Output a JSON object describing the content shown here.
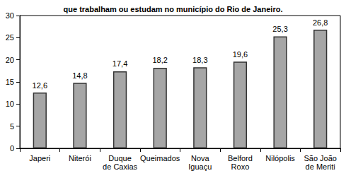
{
  "chart_data": {
    "type": "bar",
    "title": "que trabalham ou estudam no município do Rio de Janeiro.",
    "categories": [
      "Japeri",
      "Niterói",
      "Duque\nde Caxias",
      "Queimados",
      "Nova\nIguaçu",
      "Belford\nRoxo",
      "Nilópolis",
      "São João\nde Meriti"
    ],
    "values": [
      12.6,
      14.8,
      17.4,
      18.2,
      18.3,
      19.6,
      25.3,
      26.8
    ],
    "value_labels": [
      "12,6",
      "14,8",
      "17,4",
      "18,2",
      "18,3",
      "19,6",
      "25,3",
      "26,8"
    ],
    "data_labels": true,
    "color": "#a6a6a6",
    "ylim": [
      0,
      30
    ],
    "yticks": [
      0,
      5,
      10,
      15,
      20,
      25,
      30
    ],
    "grid": false
  }
}
